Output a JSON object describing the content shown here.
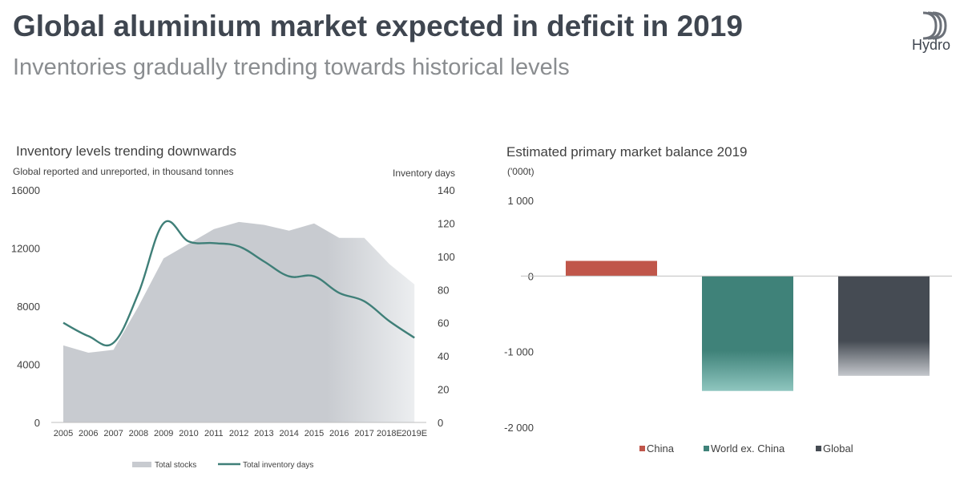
{
  "header": {
    "title": "Global aluminium market expected in deficit in 2019",
    "subtitle": "Inventories gradually trending towards historical levels",
    "logo_text": "Hydro"
  },
  "colors": {
    "stocks_fill": "#c8cbd0",
    "days_line": "#3f7f78",
    "china": "#c0564a",
    "world_ex_china": "#3f8279",
    "global": "#454b53"
  },
  "chart_data": [
    {
      "type": "area",
      "title": "Inventory levels trending downwards",
      "ylabel": "Global reported and unreported, in thousand tonnes",
      "y2label": "Inventory days",
      "categories": [
        "2005",
        "2006",
        "2007",
        "2008",
        "2009",
        "2010",
        "2011",
        "2012",
        "2013",
        "2014",
        "2015",
        "2016",
        "2017",
        "2018E",
        "2019E"
      ],
      "ylim": [
        0,
        16000
      ],
      "yticks": [
        "0",
        "4000",
        "8000",
        "12000",
        "16000"
      ],
      "y2lim": [
        0,
        140
      ],
      "y2ticks": [
        "0",
        "20",
        "40",
        "60",
        "80",
        "100",
        "120",
        "140"
      ],
      "series": [
        {
          "name": "Total stocks",
          "axis": "left",
          "type": "area",
          "values": [
            5300,
            4800,
            5000,
            8000,
            11300,
            12300,
            13300,
            13800,
            13600,
            13200,
            13700,
            12700,
            12700,
            10900,
            9500
          ]
        },
        {
          "name": "Total inventory days",
          "axis": "right",
          "type": "line",
          "values": [
            60,
            52,
            48,
            78,
            120,
            109,
            108,
            106,
            97,
            88,
            88,
            78,
            73,
            61,
            51
          ]
        }
      ],
      "legend": "bottom",
      "grid": false
    },
    {
      "type": "bar",
      "title": "Estimated primary market balance 2019",
      "ylabel": "('000t)",
      "categories": [
        "China",
        "World ex. China",
        "Global"
      ],
      "values": [
        200,
        -1520,
        -1320
      ],
      "ylim": [
        -2000,
        1000
      ],
      "yticks": [
        "-2 000",
        "-1 000",
        "0",
        "1 000"
      ],
      "legend": "bottom",
      "grid": false
    }
  ]
}
